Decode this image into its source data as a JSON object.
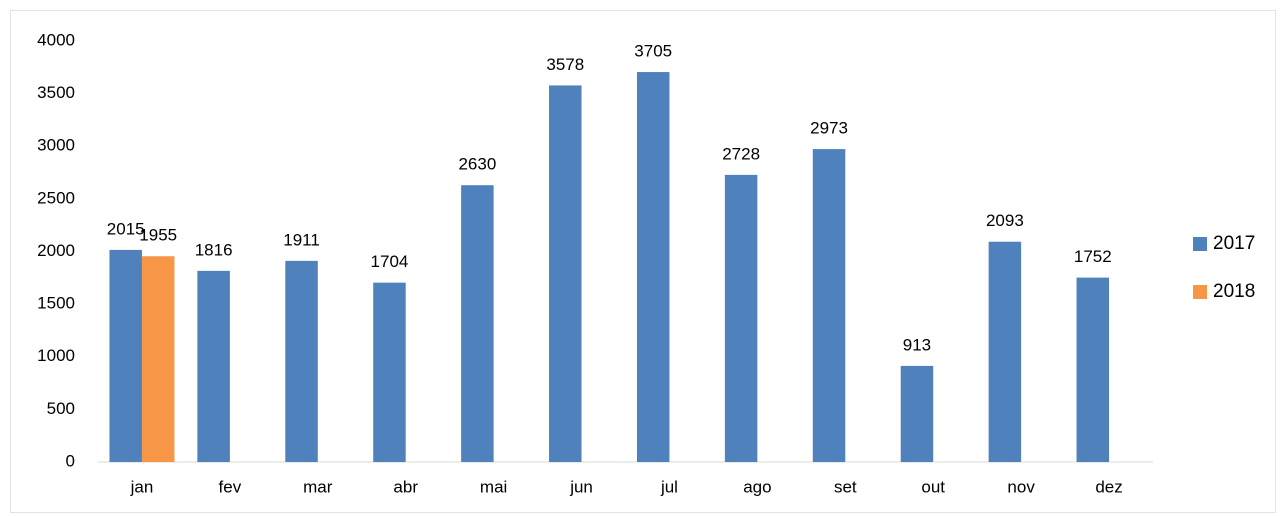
{
  "chart_data": {
    "type": "bar",
    "categories": [
      "jan",
      "fev",
      "mar",
      "abr",
      "mai",
      "jun",
      "jul",
      "ago",
      "set",
      "out",
      "nov",
      "dez"
    ],
    "series": [
      {
        "name": "2017",
        "color": "#4f81bd",
        "values": [
          2015,
          1816,
          1911,
          1704,
          2630,
          3578,
          3705,
          2728,
          2973,
          913,
          2093,
          1752
        ]
      },
      {
        "name": "2018",
        "color": "#f79646",
        "values": [
          1955,
          null,
          null,
          null,
          null,
          null,
          null,
          null,
          null,
          null,
          null,
          null
        ]
      }
    ],
    "ylim": [
      0,
      4000
    ],
    "yticks": [
      0,
      500,
      1000,
      1500,
      2000,
      2500,
      3000,
      3500,
      4000
    ],
    "grid": false,
    "legend": "right"
  }
}
